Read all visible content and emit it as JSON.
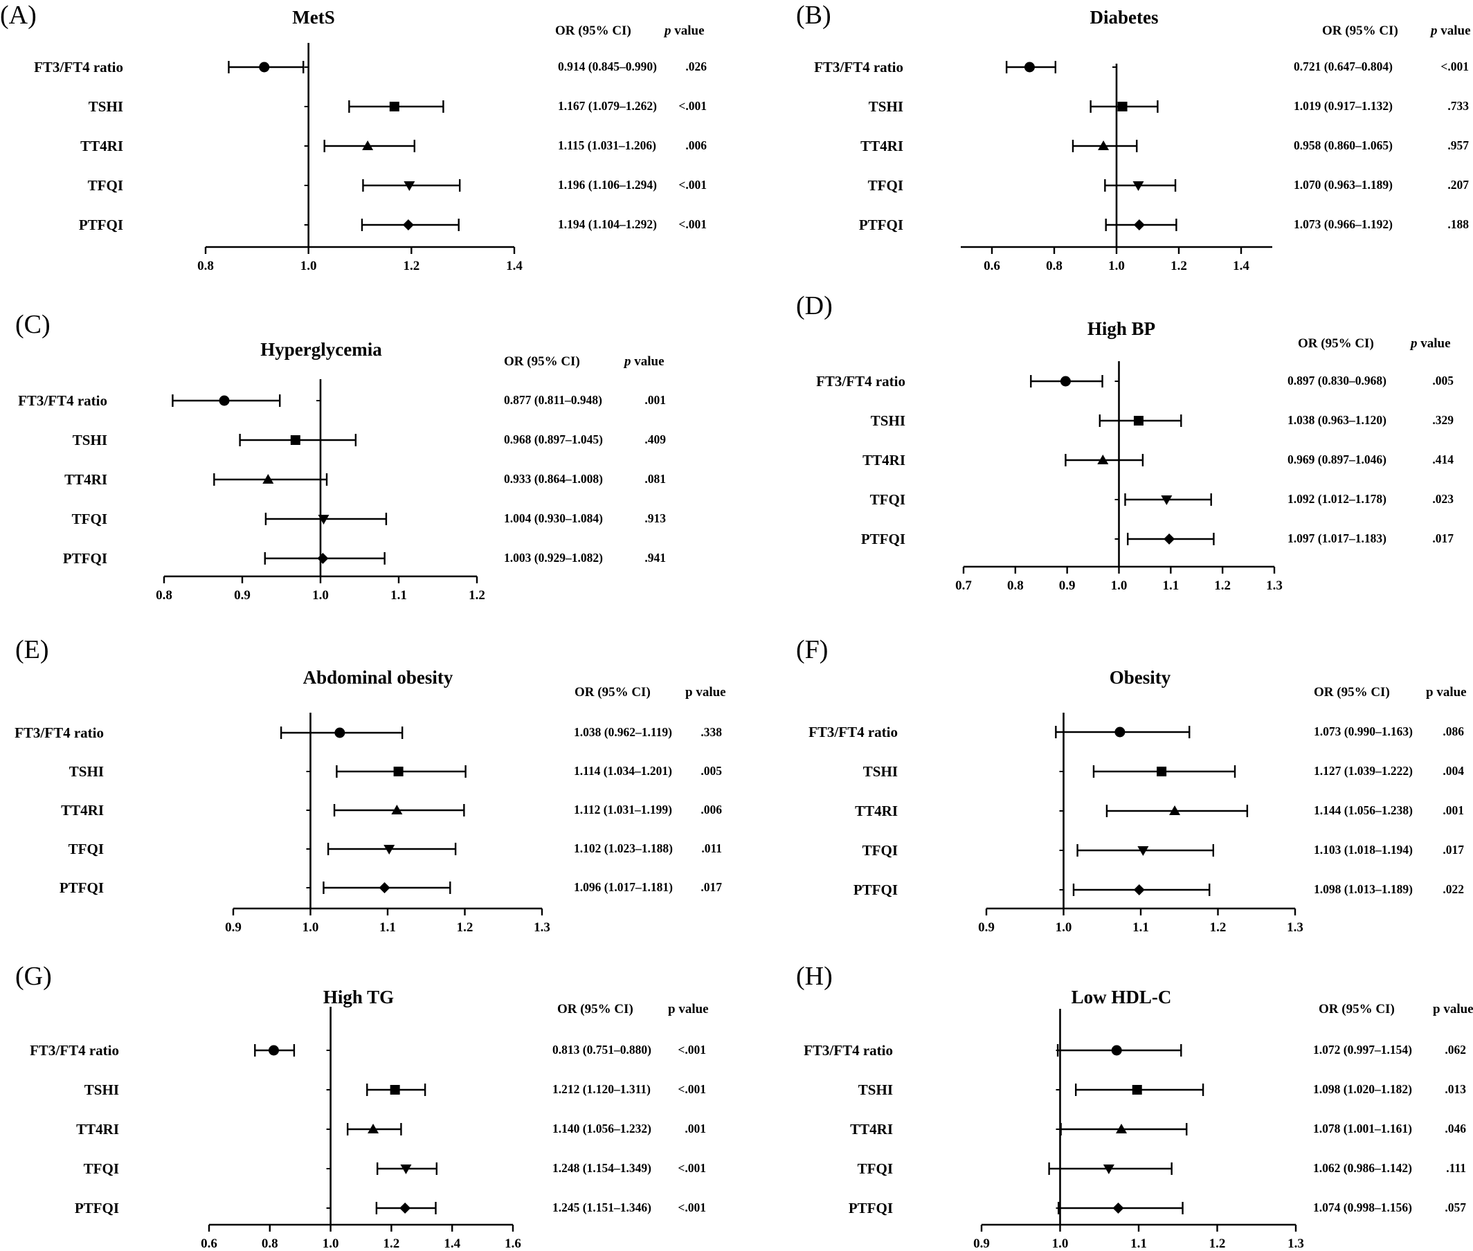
{
  "chart_data": [
    {
      "type": "forest",
      "panel": "(A)",
      "title": "MetS",
      "header_or": "OR (95% CI)",
      "header_p_italic": "p",
      "header_p_rest": " value",
      "xlim": [
        0.8,
        1.4
      ],
      "ticks": [
        "0.8",
        "1.0",
        "1.2",
        "1.4"
      ],
      "rows": [
        {
          "label": "FT3/FT4 ratio",
          "marker": "circle",
          "or": 0.914,
          "lo": 0.845,
          "hi": 0.99,
          "or_text": "0.914 (0.845–0.990)",
          "p": ".026"
        },
        {
          "label": "TSHI",
          "marker": "square",
          "or": 1.167,
          "lo": 1.079,
          "hi": 1.262,
          "or_text": "1.167 (1.079–1.262)",
          "p": "<.001"
        },
        {
          "label": "TT4RI",
          "marker": "triangle-up",
          "or": 1.115,
          "lo": 1.031,
          "hi": 1.206,
          "or_text": "1.115 (1.031–1.206)",
          "p": ".006"
        },
        {
          "label": "TFQI",
          "marker": "triangle-down",
          "or": 1.196,
          "lo": 1.106,
          "hi": 1.294,
          "or_text": "1.196 (1.106–1.294)",
          "p": "<.001"
        },
        {
          "label": "PTFQI",
          "marker": "diamond",
          "or": 1.194,
          "lo": 1.104,
          "hi": 1.292,
          "or_text": "1.194 (1.104–1.292)",
          "p": "<.001"
        }
      ]
    },
    {
      "type": "forest",
      "panel": "(B)",
      "title": "Diabetes",
      "header_or": "OR (95% CI)",
      "header_p_italic": "p",
      "header_p_rest": " value",
      "xlim": [
        0.5,
        1.5
      ],
      "ticks": [
        "0.6",
        "0.8",
        "1.0",
        "1.2",
        "1.4"
      ],
      "rows": [
        {
          "label": "FT3/FT4 ratio",
          "marker": "circle",
          "or": 0.721,
          "lo": 0.647,
          "hi": 0.804,
          "or_text": "0.721 (0.647–0.804)",
          "p": "<.001"
        },
        {
          "label": "TSHI",
          "marker": "square",
          "or": 1.019,
          "lo": 0.917,
          "hi": 1.132,
          "or_text": "1.019 (0.917–1.132)",
          "p": ".733"
        },
        {
          "label": "TT4RI",
          "marker": "triangle-up",
          "or": 0.958,
          "lo": 0.86,
          "hi": 1.065,
          "or_text": "0.958 (0.860–1.065)",
          "p": ".957"
        },
        {
          "label": "TFQI",
          "marker": "triangle-down",
          "or": 1.07,
          "lo": 0.963,
          "hi": 1.189,
          "or_text": "1.070 (0.963–1.189)",
          "p": ".207"
        },
        {
          "label": "PTFQI",
          "marker": "diamond",
          "or": 1.073,
          "lo": 0.966,
          "hi": 1.192,
          "or_text": "1.073 (0.966–1.192)",
          "p": ".188"
        }
      ]
    },
    {
      "type": "forest",
      "panel": "(C)",
      "title": "Hyperglycemia",
      "header_or": "OR (95% CI)",
      "header_p_italic": "p",
      "header_p_rest": " value",
      "xlim": [
        0.8,
        1.2
      ],
      "ticks": [
        "0.8",
        "0.9",
        "1.0",
        "1.1",
        "1.2"
      ],
      "rows": [
        {
          "label": "FT3/FT4 ratio",
          "marker": "circle",
          "or": 0.877,
          "lo": 0.811,
          "hi": 0.948,
          "or_text": "0.877 (0.811–0.948)",
          "p": ".001"
        },
        {
          "label": "TSHI",
          "marker": "square",
          "or": 0.968,
          "lo": 0.897,
          "hi": 1.045,
          "or_text": "0.968 (0.897–1.045)",
          "p": ".409"
        },
        {
          "label": "TT4RI",
          "marker": "triangle-up",
          "or": 0.933,
          "lo": 0.864,
          "hi": 1.008,
          "or_text": "0.933 (0.864–1.008)",
          "p": ".081"
        },
        {
          "label": "TFQI",
          "marker": "triangle-down",
          "or": 1.004,
          "lo": 0.93,
          "hi": 1.084,
          "or_text": "1.004 (0.930–1.084)",
          "p": ".913"
        },
        {
          "label": "PTFQI",
          "marker": "diamond",
          "or": 1.003,
          "lo": 0.929,
          "hi": 1.082,
          "or_text": "1.003 (0.929–1.082)",
          "p": ".941"
        }
      ]
    },
    {
      "type": "forest",
      "panel": "(D)",
      "title": "High BP",
      "header_or": "OR (95% CI)",
      "header_p_italic": "p",
      "header_p_rest": " value",
      "xlim": [
        0.7,
        1.3
      ],
      "ticks": [
        "0.7",
        "0.8",
        "0.9",
        "1.0",
        "1.1",
        "1.2",
        "1.3"
      ],
      "rows": [
        {
          "label": "FT3/FT4 ratio",
          "marker": "circle",
          "or": 0.897,
          "lo": 0.83,
          "hi": 0.968,
          "or_text": "0.897 (0.830–0.968)",
          "p": ".005"
        },
        {
          "label": "TSHI",
          "marker": "square",
          "or": 1.038,
          "lo": 0.963,
          "hi": 1.12,
          "or_text": "1.038 (0.963–1.120)",
          "p": ".329"
        },
        {
          "label": "TT4RI",
          "marker": "triangle-up",
          "or": 0.969,
          "lo": 0.897,
          "hi": 1.046,
          "or_text": "0.969 (0.897–1.046)",
          "p": ".414"
        },
        {
          "label": "TFQI",
          "marker": "triangle-down",
          "or": 1.092,
          "lo": 1.012,
          "hi": 1.178,
          "or_text": "1.092 (1.012–1.178)",
          "p": ".023"
        },
        {
          "label": "PTFQI",
          "marker": "diamond",
          "or": 1.097,
          "lo": 1.017,
          "hi": 1.183,
          "or_text": "1.097 (1.017–1.183)",
          "p": ".017"
        }
      ]
    },
    {
      "type": "forest",
      "panel": "(E)",
      "title": "Abdominal obesity",
      "header_or": "OR (95%   CI)",
      "header_p_italic": "",
      "header_p_rest": "p value",
      "xlim": [
        0.9,
        1.3
      ],
      "ticks": [
        "0.9",
        "1.0",
        "1.1",
        "1.2",
        "1.3"
      ],
      "rows": [
        {
          "label": "FT3/FT4 ratio",
          "marker": "circle",
          "or": 1.038,
          "lo": 0.962,
          "hi": 1.119,
          "or_text": "1.038 (0.962–1.119)",
          "p": ".338"
        },
        {
          "label": "TSHI",
          "marker": "square",
          "or": 1.114,
          "lo": 1.034,
          "hi": 1.201,
          "or_text": "1.114 (1.034–1.201)",
          "p": ".005"
        },
        {
          "label": "TT4RI",
          "marker": "triangle-up",
          "or": 1.112,
          "lo": 1.031,
          "hi": 1.199,
          "or_text": "1.112 (1.031–1.199)",
          "p": ".006"
        },
        {
          "label": "TFQI",
          "marker": "triangle-down",
          "or": 1.102,
          "lo": 1.023,
          "hi": 1.188,
          "or_text": "1.102 (1.023–1.188)",
          "p": ".011"
        },
        {
          "label": "PTFQI",
          "marker": "diamond",
          "or": 1.096,
          "lo": 1.017,
          "hi": 1.181,
          "or_text": "1.096 (1.017–1.181)",
          "p": ".017"
        }
      ]
    },
    {
      "type": "forest",
      "panel": "(F)",
      "title": "Obesity",
      "header_or": "OR (95%   CI)",
      "header_p_italic": "",
      "header_p_rest": "p value",
      "xlim": [
        0.9,
        1.3
      ],
      "ticks": [
        "0.9",
        "1.0",
        "1.1",
        "1.2",
        "1.3"
      ],
      "rows": [
        {
          "label": "FT3/FT4 ratio",
          "marker": "circle",
          "or": 1.073,
          "lo": 0.99,
          "hi": 1.163,
          "or_text": "1.073 (0.990–1.163)",
          "p": ".086"
        },
        {
          "label": "TSHI",
          "marker": "square",
          "or": 1.127,
          "lo": 1.039,
          "hi": 1.222,
          "or_text": "1.127 (1.039–1.222)",
          "p": ".004"
        },
        {
          "label": "TT4RI",
          "marker": "triangle-up",
          "or": 1.144,
          "lo": 1.056,
          "hi": 1.238,
          "or_text": "1.144 (1.056–1.238)",
          "p": ".001"
        },
        {
          "label": "TFQI",
          "marker": "triangle-down",
          "or": 1.103,
          "lo": 1.018,
          "hi": 1.194,
          "or_text": "1.103 (1.018–1.194)",
          "p": ".017"
        },
        {
          "label": "PTFQI",
          "marker": "diamond",
          "or": 1.098,
          "lo": 1.013,
          "hi": 1.189,
          "or_text": "1.098 (1.013–1.189)",
          "p": ".022"
        }
      ]
    },
    {
      "type": "forest",
      "panel": "(G)",
      "title": "High TG",
      "header_or": "OR (95%   CI)",
      "header_p_italic": "",
      "header_p_rest": "p value",
      "xlim": [
        0.6,
        1.6
      ],
      "ticks": [
        "0.6",
        "0.8",
        "1.0",
        "1.2",
        "1.4",
        "1.6"
      ],
      "rows": [
        {
          "label": "FT3/FT4 ratio",
          "marker": "circle",
          "or": 0.813,
          "lo": 0.751,
          "hi": 0.88,
          "or_text": "0.813 (0.751–0.880)",
          "p": "<.001"
        },
        {
          "label": "TSHI",
          "marker": "square",
          "or": 1.212,
          "lo": 1.12,
          "hi": 1.311,
          "or_text": "1.212 (1.120–1.311)",
          "p": "<.001"
        },
        {
          "label": "TT4RI",
          "marker": "triangle-up",
          "or": 1.14,
          "lo": 1.056,
          "hi": 1.232,
          "or_text": "1.140 (1.056–1.232)",
          "p": ".001"
        },
        {
          "label": "TFQI",
          "marker": "triangle-down",
          "or": 1.248,
          "lo": 1.154,
          "hi": 1.349,
          "or_text": "1.248 (1.154–1.349)",
          "p": "<.001"
        },
        {
          "label": "PTFQI",
          "marker": "diamond",
          "or": 1.245,
          "lo": 1.151,
          "hi": 1.346,
          "or_text": "1.245 (1.151–1.346)",
          "p": "<.001"
        }
      ]
    },
    {
      "type": "forest",
      "panel": "(H)",
      "title": "Low HDL-C",
      "header_or": "OR (95%   CI)",
      "header_p_italic": "",
      "header_p_rest": "p value",
      "xlim": [
        0.9,
        1.3
      ],
      "ticks": [
        "0.9",
        "1.0",
        "1.1",
        "1.2",
        "1.3"
      ],
      "rows": [
        {
          "label": "FT3/FT4 ratio",
          "marker": "circle",
          "or": 1.072,
          "lo": 0.997,
          "hi": 1.154,
          "or_text": "1.072 (0.997–1.154)",
          "p": ".062"
        },
        {
          "label": "TSHI",
          "marker": "square",
          "or": 1.098,
          "lo": 1.02,
          "hi": 1.182,
          "or_text": "1.098 (1.020–1.182)",
          "p": ".013"
        },
        {
          "label": "TT4RI",
          "marker": "triangle-up",
          "or": 1.078,
          "lo": 1.001,
          "hi": 1.161,
          "or_text": "1.078 (1.001–1.161)",
          "p": ".046"
        },
        {
          "label": "TFQI",
          "marker": "triangle-down",
          "or": 1.062,
          "lo": 0.986,
          "hi": 1.142,
          "or_text": "1.062 (0.986–1.142)",
          "p": ".111"
        },
        {
          "label": "PTFQI",
          "marker": "diamond",
          "or": 1.074,
          "lo": 0.998,
          "hi": 1.156,
          "or_text": "1.074 (0.998–1.156)",
          "p": ".057"
        }
      ]
    }
  ]
}
